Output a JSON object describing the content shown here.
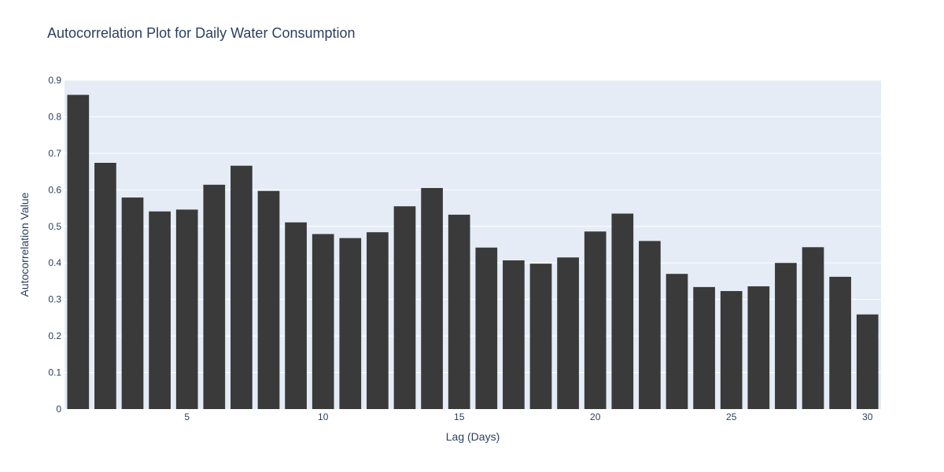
{
  "chart_data": {
    "type": "bar",
    "title": "Autocorrelation Plot for Daily Water Consumption",
    "xlabel": "Lag (Days)",
    "ylabel": "Autocorrelation Value",
    "x": [
      1,
      2,
      3,
      4,
      5,
      6,
      7,
      8,
      9,
      10,
      11,
      12,
      13,
      14,
      15,
      16,
      17,
      18,
      19,
      20,
      21,
      22,
      23,
      24,
      25,
      26,
      27,
      28,
      29,
      30
    ],
    "values": [
      0.86,
      0.674,
      0.579,
      0.541,
      0.546,
      0.614,
      0.666,
      0.597,
      0.511,
      0.479,
      0.468,
      0.484,
      0.555,
      0.605,
      0.532,
      0.442,
      0.407,
      0.398,
      0.415,
      0.486,
      0.535,
      0.46,
      0.37,
      0.334,
      0.323,
      0.336,
      0.4,
      0.443,
      0.362,
      0.259
    ],
    "xlim": [
      0.5,
      30.5
    ],
    "ylim": [
      0,
      0.9
    ],
    "xticks": [
      5,
      10,
      15,
      20,
      25,
      30
    ],
    "yticks": [
      0,
      0.1,
      0.2,
      0.3,
      0.4,
      0.5,
      0.6,
      0.7,
      0.8,
      0.9
    ],
    "grid": true,
    "colors": {
      "bar": "#3a3a3a",
      "plot_background": "#e5ecf6",
      "grid": "#ffffff",
      "text": "#2a3f5f"
    }
  }
}
